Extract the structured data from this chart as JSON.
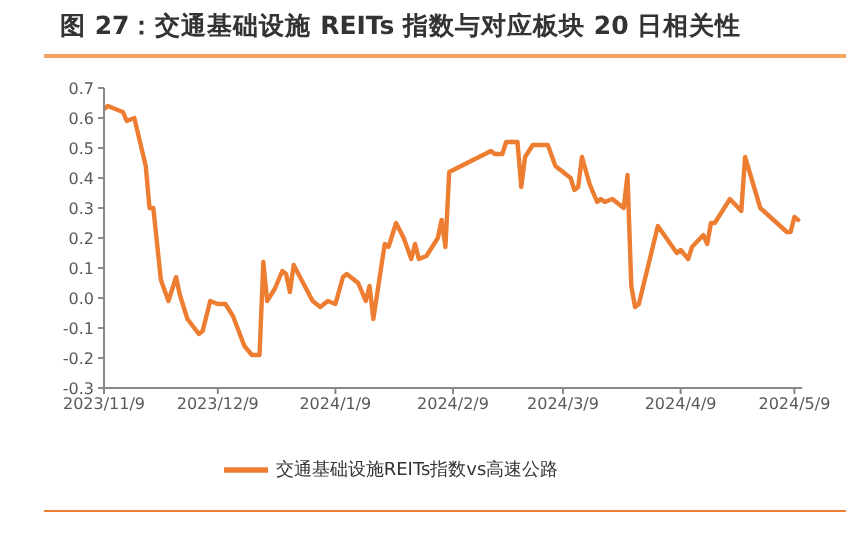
{
  "chart_data": {
    "type": "line",
    "title": "图 27：交通基础设施 REITs 指数与对应板块 20 日相关性",
    "x": [
      "2023-11-09",
      "2023-11-10",
      "2023-11-14",
      "2023-11-15",
      "2023-11-17",
      "2023-11-20",
      "2023-11-21",
      "2023-11-22",
      "2023-11-24",
      "2023-11-26",
      "2023-11-28",
      "2023-11-29",
      "2023-12-01",
      "2023-12-04",
      "2023-12-05",
      "2023-12-07",
      "2023-12-09",
      "2023-12-11",
      "2023-12-13",
      "2023-12-16",
      "2023-12-18",
      "2023-12-20",
      "2023-12-21",
      "2023-12-22",
      "2023-12-24",
      "2023-12-26",
      "2023-12-27",
      "2023-12-28",
      "2023-12-29",
      "2024-01-03",
      "2024-01-05",
      "2024-01-07",
      "2024-01-09",
      "2024-01-11",
      "2024-01-12",
      "2024-01-15",
      "2024-01-17",
      "2024-01-18",
      "2024-01-19",
      "2024-01-22",
      "2024-01-23",
      "2024-01-25",
      "2024-01-27",
      "2024-01-29",
      "2024-01-30",
      "2024-01-31",
      "2024-02-02",
      "2024-02-05",
      "2024-02-06",
      "2024-02-07",
      "2024-02-08",
      "2024-02-19",
      "2024-02-20",
      "2024-02-22",
      "2024-02-23",
      "2024-02-26",
      "2024-02-27",
      "2024-02-28",
      "2024-03-01",
      "2024-03-05",
      "2024-03-07",
      "2024-03-10",
      "2024-03-11",
      "2024-03-12",
      "2024-03-13",
      "2024-03-14",
      "2024-03-16",
      "2024-03-18",
      "2024-03-19",
      "2024-03-20",
      "2024-03-22",
      "2024-03-25",
      "2024-03-26",
      "2024-03-27",
      "2024-03-28",
      "2024-03-29",
      "2024-04-03",
      "2024-04-08",
      "2024-04-09",
      "2024-04-11",
      "2024-04-12",
      "2024-04-15",
      "2024-04-16",
      "2024-04-17",
      "2024-04-18",
      "2024-04-20",
      "2024-04-22",
      "2024-04-25",
      "2024-04-26",
      "2024-04-30",
      "2024-05-07",
      "2024-05-08",
      "2024-05-09",
      "2024-05-10"
    ],
    "series": [
      {
        "name": "交通基础设施REITs指数vs高速公路",
        "color": "#ed7d31",
        "values": [
          0.63,
          0.64,
          0.62,
          0.59,
          0.6,
          0.44,
          0.3,
          0.3,
          0.06,
          -0.01,
          0.07,
          0.01,
          -0.07,
          -0.12,
          -0.11,
          -0.01,
          -0.02,
          -0.02,
          -0.06,
          -0.16,
          -0.19,
          -0.19,
          0.12,
          -0.01,
          0.03,
          0.09,
          0.08,
          0.02,
          0.11,
          -0.01,
          -0.03,
          -0.01,
          -0.02,
          0.07,
          0.08,
          0.05,
          -0.01,
          0.04,
          -0.07,
          0.18,
          0.17,
          0.25,
          0.2,
          0.13,
          0.18,
          0.13,
          0.14,
          0.2,
          0.26,
          0.17,
          0.42,
          0.49,
          0.48,
          0.48,
          0.52,
          0.52,
          0.37,
          0.47,
          0.51,
          0.51,
          0.44,
          0.41,
          0.4,
          0.36,
          0.37,
          0.47,
          0.38,
          0.32,
          0.33,
          0.32,
          0.33,
          0.3,
          0.41,
          0.04,
          -0.03,
          -0.02,
          0.24,
          0.15,
          0.16,
          0.13,
          0.17,
          0.21,
          0.18,
          0.25,
          0.25,
          0.29,
          0.33,
          0.29,
          0.47,
          0.3,
          0.22,
          0.22,
          0.27,
          0.26
        ]
      }
    ],
    "xlim": [
      "2023-11-09",
      "2024-05-11"
    ],
    "xticks": [
      {
        "value": "2023-11-09",
        "label": "2023/11/9"
      },
      {
        "value": "2023-12-09",
        "label": "2023/12/9"
      },
      {
        "value": "2024-01-09",
        "label": "2024/1/9"
      },
      {
        "value": "2024-02-09",
        "label": "2024/2/9"
      },
      {
        "value": "2024-03-09",
        "label": "2024/3/9"
      },
      {
        "value": "2024-04-09",
        "label": "2024/4/9"
      },
      {
        "value": "2024-05-09",
        "label": "2024/5/9"
      }
    ],
    "ylim": [
      -0.3,
      0.7
    ],
    "yticks": [
      {
        "value": -0.3,
        "label": "-0.3"
      },
      {
        "value": -0.2,
        "label": "-0.2"
      },
      {
        "value": -0.1,
        "label": "-0.1"
      },
      {
        "value": 0,
        "label": "0.0"
      },
      {
        "value": 0.1,
        "label": "0.1"
      },
      {
        "value": 0.2,
        "label": "0.2"
      },
      {
        "value": 0.3,
        "label": "0.3"
      },
      {
        "value": 0.4,
        "label": "0.4"
      },
      {
        "value": 0.5,
        "label": "0.5"
      },
      {
        "value": 0.6,
        "label": "0.6"
      },
      {
        "value": 0.7,
        "label": "0.7"
      }
    ],
    "legend": "bottom",
    "marker": "none",
    "line_style": "solid"
  }
}
